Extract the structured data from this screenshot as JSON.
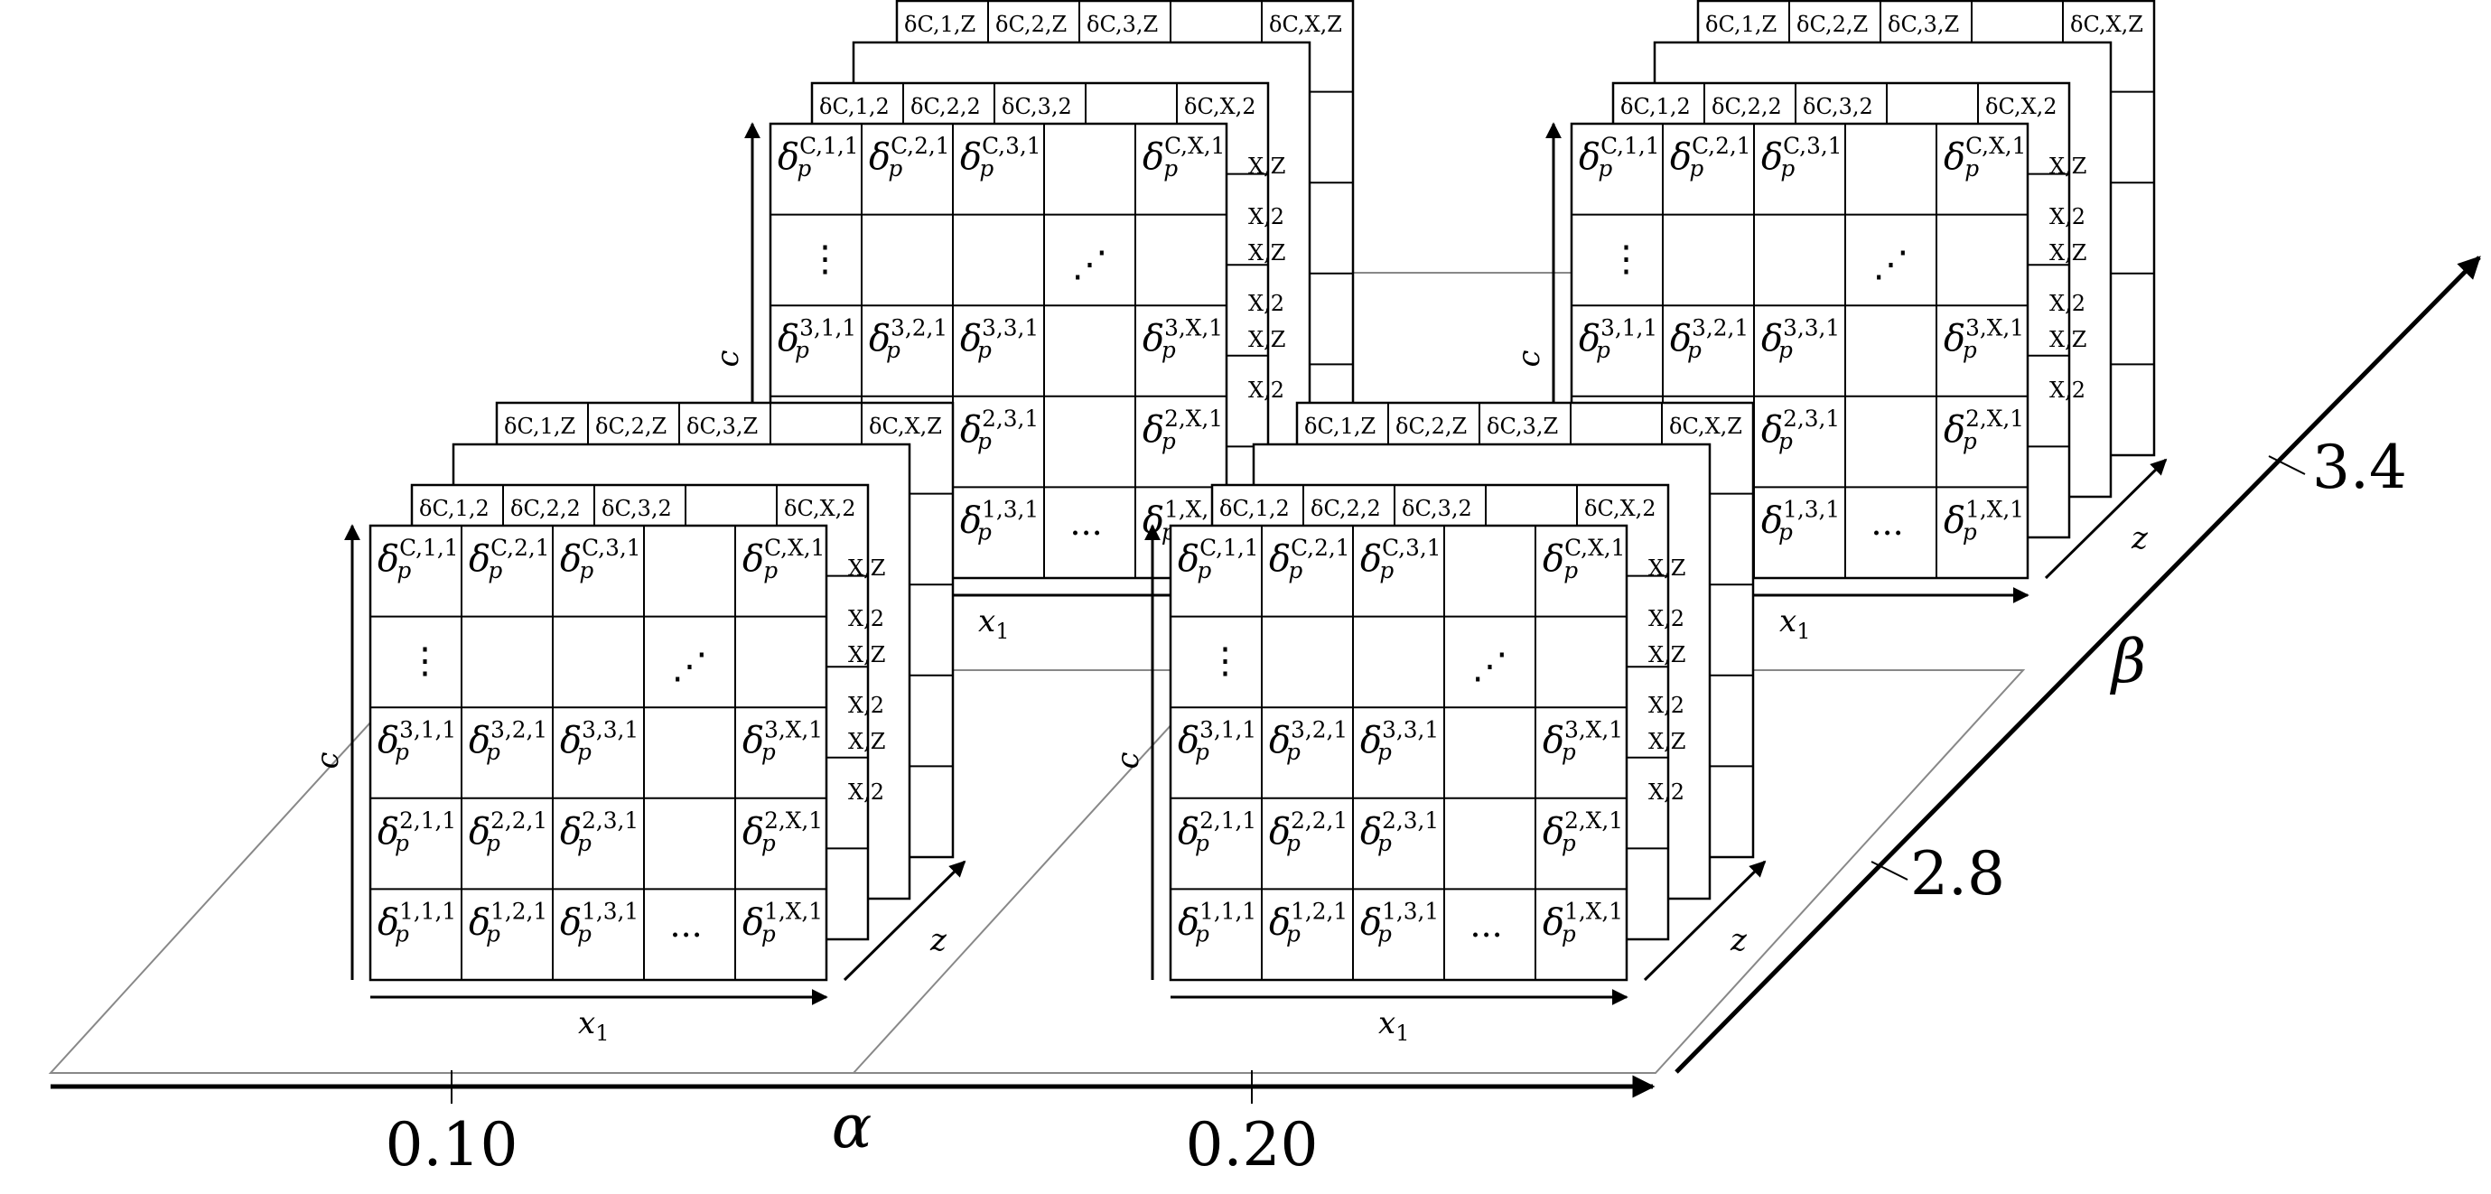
{
  "axes": {
    "alpha": {
      "label": "α",
      "ticks": [
        "0.10",
        "0.20"
      ]
    },
    "beta": {
      "label": "β",
      "ticks": [
        "2.8",
        "3.4"
      ]
    }
  },
  "block": {
    "axis_x": "x",
    "axis_x_sub": "1",
    "axis_c": "c",
    "axis_z": "z",
    "symbol": "δ",
    "subscript": "p",
    "rows": [
      [
        "C,1,1",
        "C,2,1",
        "C,3,1",
        "",
        "C,X,1"
      ],
      [
        "",
        "",
        "",
        "",
        ""
      ],
      [
        "3,1,1",
        "3,2,1",
        "3,3,1",
        "",
        "3,X,1"
      ],
      [
        "2,1,1",
        "2,2,1",
        "2,3,1",
        "",
        "2,X,1"
      ],
      [
        "1,1,1",
        "1,2,1",
        "1,3,1",
        "",
        "1,X,1"
      ]
    ],
    "dots_vertical": "⋮",
    "dots_diagonal": "⋰",
    "dots_horizontal": "···",
    "layer2_top": [
      "C,1,2",
      "C,2,2",
      "C,3,2",
      "",
      "C,X,2"
    ],
    "layerZ_top": [
      "C,1,Z",
      "C,2,Z",
      "C,3,Z",
      "",
      "C,X,Z"
    ],
    "side_labels": [
      "X,Z",
      "X,2",
      "X,Z",
      "X,2",
      "X,Z",
      "X,2"
    ]
  },
  "panels": [
    {
      "alpha": "0.10",
      "beta": "2.8"
    },
    {
      "alpha": "0.20",
      "beta": "2.8"
    },
    {
      "alpha": "0.10",
      "beta": "3.4"
    },
    {
      "alpha": "0.20",
      "beta": "3.4"
    }
  ]
}
